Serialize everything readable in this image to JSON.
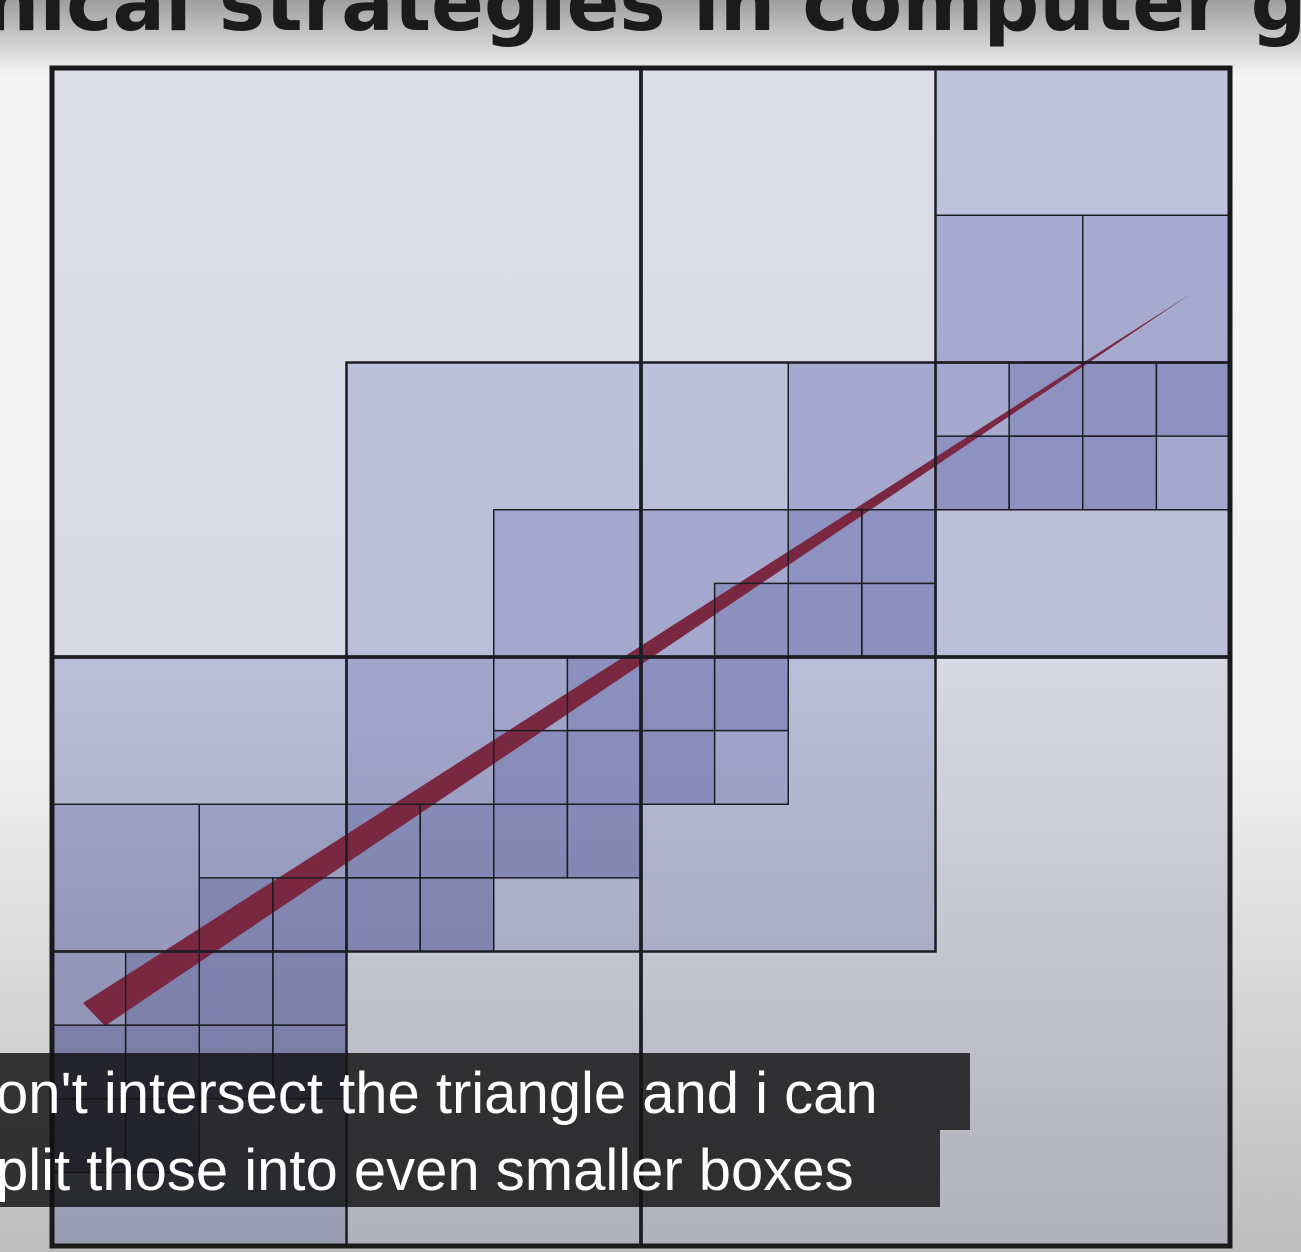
{
  "header": {
    "title": "archical strategies in computer grap"
  },
  "captions": [
    "on't intersect the triangle and i can",
    "plit those into even smaller boxes"
  ]
}
